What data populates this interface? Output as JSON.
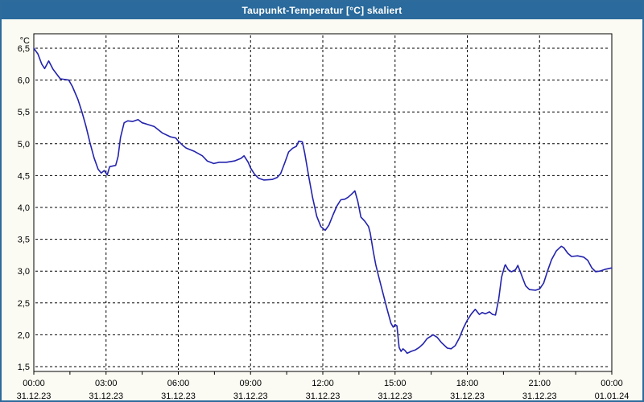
{
  "window": {
    "title": "Taupunkt-Temperatur [°C] skaliert"
  },
  "colors": {
    "frame_border": "#2e6b9d",
    "titlebar_bg": "#2a6a9c",
    "titlebar_text": "#ffffff",
    "page_bg": "#fbfbf3",
    "plot_bg": "#ffffff",
    "grid": "#000000",
    "axis_text": "#000000",
    "line": "#2323ad"
  },
  "chart_data": {
    "type": "line",
    "title": "Taupunkt-Temperatur [°C] skaliert",
    "xlabel": "",
    "ylabel": "°C",
    "grid": "dashed",
    "legend": "none",
    "y_axis": {
      "unit_label": "°C",
      "min": 1.5,
      "max": 6.5,
      "tick_values": [
        6.5,
        6.0,
        5.5,
        5.0,
        4.5,
        4.0,
        3.5,
        3.0,
        2.5,
        2.0,
        1.5
      ],
      "tick_labels": [
        "6,5",
        "6,0",
        "5,5",
        "5,0",
        "4,5",
        "4,0",
        "3,5",
        "3,0",
        "2,5",
        "2,0",
        "1,5"
      ]
    },
    "x_axis": {
      "range_hours": [
        0,
        24
      ],
      "major_tick_hours": [
        0,
        3,
        6,
        9,
        12,
        15,
        18,
        21,
        24
      ],
      "minor_tick_interval_hours": 1.5,
      "tick_labels": [
        {
          "time": "00:00",
          "date": "31.12.23"
        },
        {
          "time": "03:00",
          "date": "31.12.23"
        },
        {
          "time": "06:00",
          "date": "31.12.23"
        },
        {
          "time": "09:00",
          "date": "31.12.23"
        },
        {
          "time": "12:00",
          "date": "31.12.23"
        },
        {
          "time": "15:00",
          "date": "31.12.23"
        },
        {
          "time": "18:00",
          "date": "31.12.23"
        },
        {
          "time": "21:00",
          "date": "31.12.23"
        },
        {
          "time": "00:00",
          "date": "01.01.24"
        }
      ]
    },
    "series": [
      {
        "name": "Taupunkt-Temperatur",
        "unit": "°C",
        "points_hour_value": [
          [
            0,
            6.5
          ],
          [
            0.17,
            6.41
          ],
          [
            0.33,
            6.25
          ],
          [
            0.45,
            6.18
          ],
          [
            0.62,
            6.3
          ],
          [
            0.8,
            6.17
          ],
          [
            1,
            6.07
          ],
          [
            1.1,
            6.02
          ],
          [
            1.45,
            6.0
          ],
          [
            1.6,
            5.9
          ],
          [
            1.83,
            5.7
          ],
          [
            2,
            5.5
          ],
          [
            2.17,
            5.27
          ],
          [
            2.33,
            5.02
          ],
          [
            2.5,
            4.78
          ],
          [
            2.67,
            4.6
          ],
          [
            2.8,
            4.54
          ],
          [
            2.92,
            4.58
          ],
          [
            3.05,
            4.51
          ],
          [
            3.15,
            4.64
          ],
          [
            3.4,
            4.66
          ],
          [
            3.5,
            4.8
          ],
          [
            3.6,
            5.1
          ],
          [
            3.75,
            5.33
          ],
          [
            3.9,
            5.36
          ],
          [
            4.1,
            5.35
          ],
          [
            4.33,
            5.38
          ],
          [
            4.5,
            5.33
          ],
          [
            4.67,
            5.31
          ],
          [
            5,
            5.27
          ],
          [
            5.33,
            5.17
          ],
          [
            5.67,
            5.11
          ],
          [
            5.9,
            5.09
          ],
          [
            6,
            5.04
          ],
          [
            6.2,
            4.97
          ],
          [
            6.33,
            4.93
          ],
          [
            6.67,
            4.88
          ],
          [
            7,
            4.81
          ],
          [
            7.2,
            4.73
          ],
          [
            7.47,
            4.69
          ],
          [
            7.7,
            4.71
          ],
          [
            8,
            4.71
          ],
          [
            8.33,
            4.73
          ],
          [
            8.6,
            4.77
          ],
          [
            8.73,
            4.81
          ],
          [
            8.9,
            4.71
          ],
          [
            9,
            4.62
          ],
          [
            9.17,
            4.52
          ],
          [
            9.33,
            4.46
          ],
          [
            9.55,
            4.43
          ],
          [
            9.9,
            4.44
          ],
          [
            10.1,
            4.47
          ],
          [
            10.25,
            4.53
          ],
          [
            10.42,
            4.7
          ],
          [
            10.58,
            4.87
          ],
          [
            10.75,
            4.93
          ],
          [
            10.9,
            4.96
          ],
          [
            11,
            5.04
          ],
          [
            11.15,
            5.03
          ],
          [
            11.25,
            4.85
          ],
          [
            11.42,
            4.48
          ],
          [
            11.58,
            4.15
          ],
          [
            11.75,
            3.86
          ],
          [
            11.92,
            3.7
          ],
          [
            12.1,
            3.64
          ],
          [
            12.25,
            3.72
          ],
          [
            12.42,
            3.88
          ],
          [
            12.58,
            4.02
          ],
          [
            12.75,
            4.12
          ],
          [
            12.92,
            4.13
          ],
          [
            13.05,
            4.16
          ],
          [
            13.17,
            4.2
          ],
          [
            13.33,
            4.26
          ],
          [
            13.45,
            4.1
          ],
          [
            13.58,
            3.85
          ],
          [
            13.75,
            3.78
          ],
          [
            13.9,
            3.7
          ],
          [
            13.97,
            3.6
          ],
          [
            14.1,
            3.3
          ],
          [
            14.2,
            3.1
          ],
          [
            14.33,
            2.9
          ],
          [
            14.5,
            2.65
          ],
          [
            14.67,
            2.4
          ],
          [
            14.83,
            2.18
          ],
          [
            14.92,
            2.12
          ],
          [
            15,
            2.16
          ],
          [
            15.08,
            2.14
          ],
          [
            15.17,
            1.8
          ],
          [
            15.25,
            1.74
          ],
          [
            15.33,
            1.78
          ],
          [
            15.42,
            1.75
          ],
          [
            15.5,
            1.71
          ],
          [
            15.67,
            1.74
          ],
          [
            15.83,
            1.76
          ],
          [
            16,
            1.8
          ],
          [
            16.17,
            1.86
          ],
          [
            16.33,
            1.94
          ],
          [
            16.58,
            2.0
          ],
          [
            16.75,
            1.96
          ],
          [
            16.92,
            1.88
          ],
          [
            17.17,
            1.79
          ],
          [
            17.33,
            1.78
          ],
          [
            17.5,
            1.83
          ],
          [
            17.67,
            1.95
          ],
          [
            17.83,
            2.1
          ],
          [
            18,
            2.23
          ],
          [
            18.17,
            2.33
          ],
          [
            18.33,
            2.4
          ],
          [
            18.5,
            2.32
          ],
          [
            18.62,
            2.35
          ],
          [
            18.75,
            2.33
          ],
          [
            18.92,
            2.36
          ],
          [
            19.05,
            2.32
          ],
          [
            19.17,
            2.31
          ],
          [
            19.3,
            2.55
          ],
          [
            19.42,
            2.9
          ],
          [
            19.55,
            3.08
          ],
          [
            19.58,
            3.1
          ],
          [
            19.7,
            3.02
          ],
          [
            19.83,
            2.99
          ],
          [
            20,
            3.02
          ],
          [
            20.1,
            3.09
          ],
          [
            20.25,
            2.94
          ],
          [
            20.42,
            2.77
          ],
          [
            20.58,
            2.71
          ],
          [
            20.83,
            2.7
          ],
          [
            21,
            2.72
          ],
          [
            21.17,
            2.81
          ],
          [
            21.33,
            3.0
          ],
          [
            21.5,
            3.18
          ],
          [
            21.7,
            3.32
          ],
          [
            21.9,
            3.39
          ],
          [
            22,
            3.37
          ],
          [
            22.17,
            3.28
          ],
          [
            22.33,
            3.23
          ],
          [
            22.58,
            3.24
          ],
          [
            22.83,
            3.22
          ],
          [
            23,
            3.17
          ],
          [
            23.17,
            3.05
          ],
          [
            23.33,
            2.99
          ],
          [
            23.5,
            3.0
          ],
          [
            23.75,
            3.03
          ],
          [
            24,
            3.05
          ]
        ]
      }
    ]
  }
}
